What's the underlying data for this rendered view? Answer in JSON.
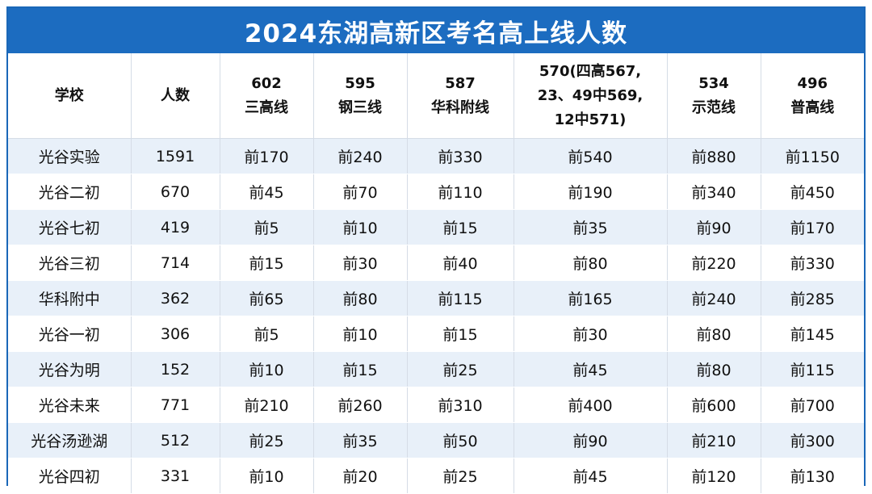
{
  "title": "2024东湖高新区考名高上线人数",
  "headers": [
    "学校",
    "人数",
    "602\n三高线",
    "595\n钢三线",
    "587\n华科附线",
    "570(四高567,\n23、49中569,\n12中571)",
    "534\n示范线",
    "496\n普高线"
  ],
  "rows": [
    [
      "光谷实验",
      "1591",
      "前170",
      "前240",
      "前330",
      "前540",
      "前880",
      "前1150"
    ],
    [
      "光谷二初",
      "670",
      "前45",
      "前70",
      "前110",
      "前190",
      "前340",
      "前450"
    ],
    [
      "光谷七初",
      "419",
      "前5",
      "前10",
      "前15",
      "前35",
      "前90",
      "前170"
    ],
    [
      "光谷三初",
      "714",
      "前15",
      "前30",
      "前40",
      "前80",
      "前220",
      "前330"
    ],
    [
      "华科附中",
      "362",
      "前65",
      "前80",
      "前115",
      "前165",
      "前240",
      "前285"
    ],
    [
      "光谷一初",
      "306",
      "前5",
      "前10",
      "前15",
      "前30",
      "前80",
      "前145"
    ],
    [
      "光谷为明",
      "152",
      "前10",
      "前15",
      "前25",
      "前45",
      "前80",
      "前115"
    ],
    [
      "光谷未来",
      "771",
      "前210",
      "前260",
      "前310",
      "前400",
      "前600",
      "前700"
    ],
    [
      "光谷汤逊湖",
      "512",
      "前25",
      "前35",
      "前50",
      "前90",
      "前210",
      "前300"
    ],
    [
      "光谷四初",
      "331",
      "前10",
      "前20",
      "前25",
      "前45",
      "前120",
      "前130"
    ]
  ],
  "colors": {
    "title_bg": "#1c6cc0",
    "title_text": "#ffffff",
    "row_stripe": "#e8f0f9",
    "border": "#1a67b8"
  }
}
